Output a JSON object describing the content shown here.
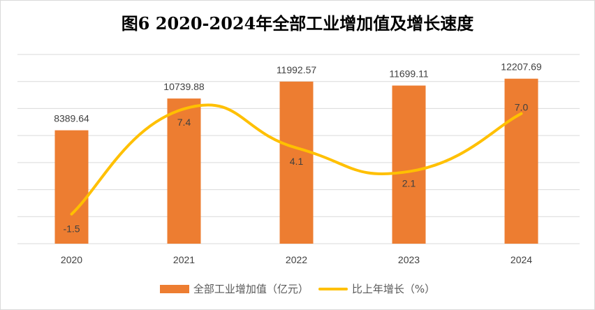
{
  "chart_data": {
    "type": "bar+line",
    "title": "图6  2020-2024年全部工业增加值及增长速度",
    "categories": [
      "2020",
      "2021",
      "2022",
      "2023",
      "2024"
    ],
    "series": [
      {
        "name": "全部工业增加值（亿元）",
        "type": "bar",
        "axis": "primary",
        "values": [
          8389.64,
          10739.88,
          11992.57,
          11699.11,
          12207.69
        ],
        "color": "#ed7d31"
      },
      {
        "name": "比上年增长（%）",
        "type": "line",
        "smooth": true,
        "axis": "secondary",
        "values": [
          -1.5,
          7.4,
          4.1,
          2.1,
          7.0
        ],
        "color": "#ffc000"
      }
    ],
    "ylim": [
      0,
      14000
    ],
    "y2lim": [
      -4,
      12
    ],
    "grid": true,
    "legend": "bottom"
  }
}
